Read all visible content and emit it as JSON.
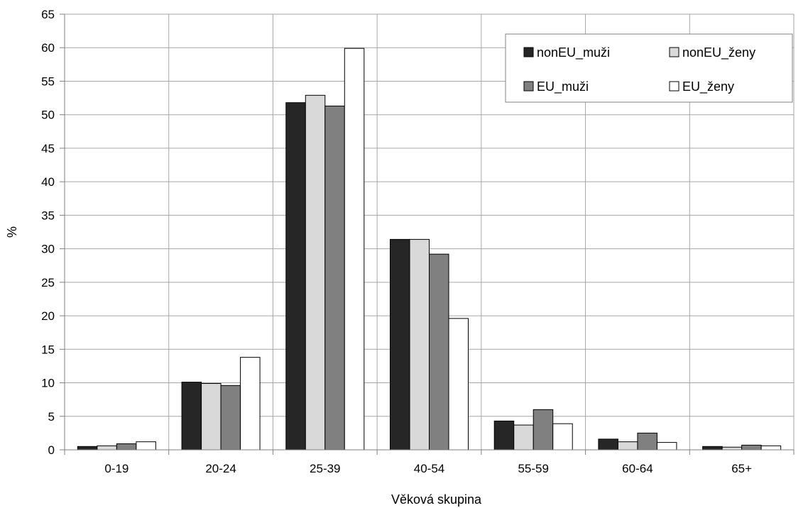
{
  "chart_data": {
    "type": "bar",
    "title": "",
    "xlabel": "Věková skupina",
    "ylabel": "%",
    "ylim": [
      0,
      65
    ],
    "yticks": [
      "0",
      "5",
      "10",
      "15",
      "20",
      "25",
      "30",
      "35",
      "40",
      "45",
      "50",
      "55",
      "60",
      "65"
    ],
    "grid": true,
    "legend_position": "top-right",
    "categories": [
      "0-19",
      "20-24",
      "25-39",
      "40-54",
      "55-59",
      "60-64",
      "65+"
    ],
    "series": [
      {
        "name": "nonEU_muži",
        "color": "#262626",
        "values": [
          0.5,
          10.1,
          51.8,
          31.4,
          4.3,
          1.6,
          0.5
        ]
      },
      {
        "name": "nonEU_ženy",
        "color": "#d9d9d9",
        "values": [
          0.6,
          9.9,
          52.9,
          31.4,
          3.7,
          1.2,
          0.4
        ]
      },
      {
        "name": "EU_muži",
        "color": "#808080",
        "values": [
          0.9,
          9.6,
          51.3,
          29.2,
          6.0,
          2.5,
          0.7
        ]
      },
      {
        "name": "EU_ženy",
        "color": "#ffffff",
        "values": [
          1.2,
          13.8,
          59.9,
          19.6,
          3.9,
          1.1,
          0.6
        ]
      }
    ]
  }
}
